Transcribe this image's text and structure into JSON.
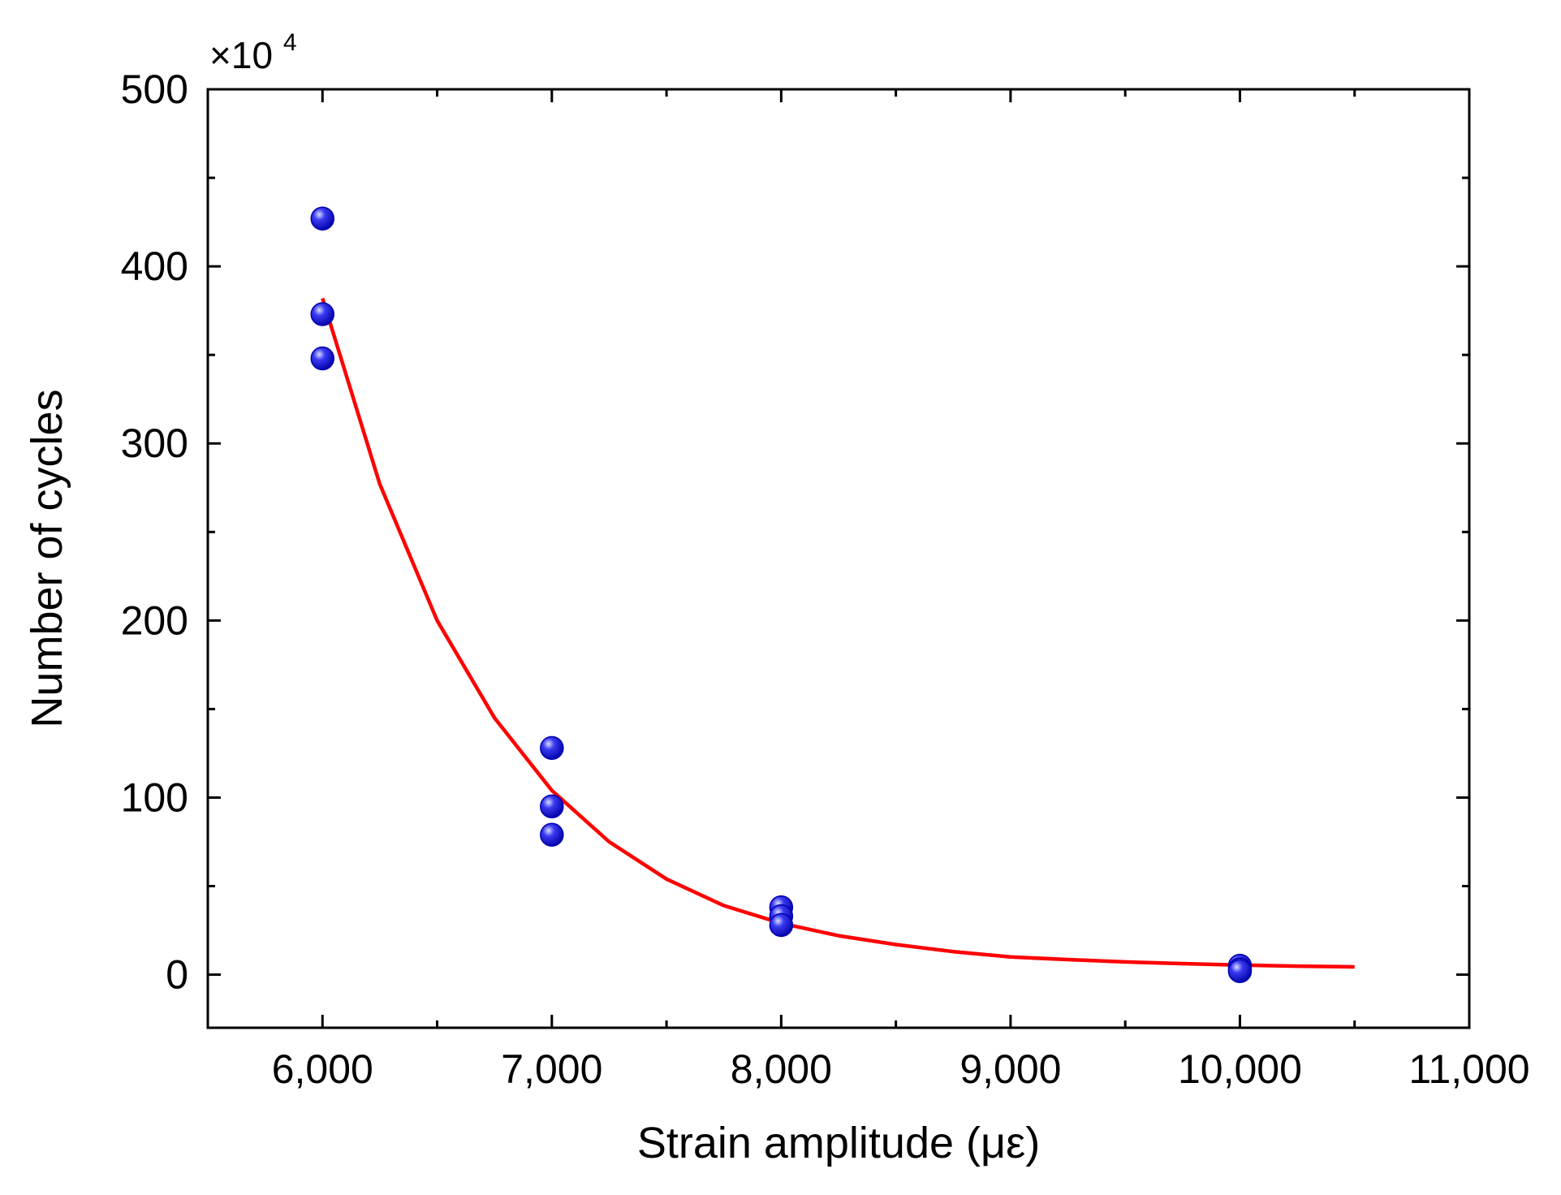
{
  "chart_data": {
    "type": "scatter",
    "title": "",
    "xlabel": "Strain amplitude (με)",
    "ylabel": "Number of cycles",
    "y_multiplier_base": "×10",
    "y_multiplier_exponent": "4",
    "xlim": [
      5500,
      11000
    ],
    "ylim": [
      -30,
      500
    ],
    "x_ticks": [
      6000,
      7000,
      8000,
      9000,
      10000,
      11000
    ],
    "x_tick_labels": [
      "6,000",
      "7,000",
      "8,000",
      "9,000",
      "10,000",
      "11,000"
    ],
    "x_minor_ticks": [
      6500,
      7500,
      8500,
      9500,
      10500
    ],
    "y_ticks": [
      0,
      100,
      200,
      300,
      400,
      500
    ],
    "y_tick_labels": [
      "0",
      "100",
      "200",
      "300",
      "400",
      "500"
    ],
    "y_minor_ticks": [
      50,
      150,
      250,
      350,
      450
    ],
    "grid": false,
    "legend": "none",
    "series": [
      {
        "kind": "scatter",
        "color": "#1010e0",
        "points": [
          {
            "x": 6000,
            "y": 427
          },
          {
            "x": 6000,
            "y": 373
          },
          {
            "x": 6000,
            "y": 348
          },
          {
            "x": 7000,
            "y": 128
          },
          {
            "x": 7000,
            "y": 95
          },
          {
            "x": 7000,
            "y": 79
          },
          {
            "x": 8000,
            "y": 38
          },
          {
            "x": 8000,
            "y": 33
          },
          {
            "x": 8000,
            "y": 28
          },
          {
            "x": 10000,
            "y": 5
          },
          {
            "x": 10000,
            "y": 3
          },
          {
            "x": 10000,
            "y": 2
          }
        ]
      },
      {
        "kind": "fit-curve",
        "color": "#ff0000",
        "x": [
          6000,
          6250,
          6500,
          6750,
          7000,
          7250,
          7500,
          7750,
          8000,
          8250,
          8500,
          8750,
          9000,
          9250,
          9500,
          9750,
          10000,
          10250,
          10500
        ],
        "y": [
          382,
          277,
          200,
          145,
          104,
          75,
          54,
          39,
          29,
          22,
          17,
          13,
          10,
          8.5,
          7.2,
          6.2,
          5.4,
          4.8,
          4.4
        ]
      }
    ]
  }
}
